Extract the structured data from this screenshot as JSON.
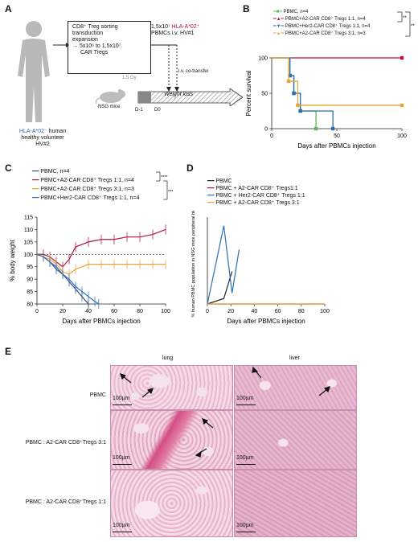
{
  "panelA": {
    "label": "A",
    "box_lines": [
      "CD8⁺ Treg sorting",
      "transduction",
      "expansion",
      "→ 5x10⁶ to 1,5x10⁷",
      "CAR Tregs"
    ],
    "donor_line1": "HLA-A*02⁻",
    "donor_line1_suffix": " human",
    "donor_line2": "healthy volunteer",
    "donor_line3": "HV#2",
    "pbmc_line1": "1,5x10⁷",
    "pbmc_line1_red": " HLA-A*02⁺",
    "pbmc_line2": "PBMCs i.v. HV#1",
    "gy": "1.5 Gy",
    "cotransfer": "i.v. co-transfer",
    "mice": "NSG mice",
    "d_minus1": "D-1",
    "d0": "D0",
    "timeline": "Weight loss"
  },
  "panelB": {
    "label": "B",
    "legend": [
      {
        "name": "PBMC, n=4",
        "color": "#5cb85c"
      },
      {
        "name": "PBMC+A2-CAR CD8⁺ Tregs 1:1, n=4",
        "color": "#b0163a"
      },
      {
        "name": "PBMC+Her2-CAR CD8⁺ Tregs 1:1, n=4",
        "color": "#2a6fb5"
      },
      {
        "name": "PBMC+A2-CAR CD8⁺ Tregs 3:1, n=3",
        "color": "#e8a33a"
      }
    ],
    "sig": [
      "**",
      "**"
    ]
  },
  "panelC": {
    "label": "C",
    "legend": [
      {
        "name": "PBMC, n=4",
        "color": "#3b4a8a"
      },
      {
        "name": "PBMC+A2-CAR CD8⁺ Tregs 1:1, n=4",
        "color": "#b0163a"
      },
      {
        "name": "PBMC+A2-CAR CD8⁺ Tregs 3:1, n=3",
        "color": "#e8a33a"
      },
      {
        "name": "PBMC+Her2-CAR CD8⁺ Tregs 1:1, n=4",
        "color": "#2a6fb5"
      }
    ],
    "sig": [
      "****",
      "***"
    ]
  },
  "panelD": {
    "label": "D",
    "legend": [
      {
        "name": "PBMC",
        "color": "#222222"
      },
      {
        "name": "PBMC + A2-CAR CD8⁺ Tregs1:1",
        "color": "#b0163a"
      },
      {
        "name": "PBMC + Her2-CAR CD8⁺ Tregs 1:1",
        "color": "#2a6fb5"
      },
      {
        "name": "PBMC + A2-CAR CD8⁺ Tregs 3:1",
        "color": "#e8a33a"
      }
    ]
  },
  "panelE": {
    "label": "E",
    "col_lung": "lung",
    "col_liver": "liver",
    "rows": [
      "PBMC",
      "PBMC : A2-CAR CD8⁺Tregs 3:1",
      "PBMC : A2-CAR CD8⁺Tregs 1:1"
    ],
    "scale": "100µm"
  },
  "chart_data": [
    {
      "type": "line",
      "panel": "B",
      "title": "",
      "xlabel": "Days after PBMCs injection",
      "ylabel": "Percent survival",
      "xlim": [
        0,
        100
      ],
      "ylim": [
        0,
        100
      ],
      "xticks": [
        0,
        50,
        100
      ],
      "yticks": [
        0,
        50,
        100
      ],
      "series": [
        {
          "name": "PBMC, n=4",
          "color": "#5cb85c",
          "x": [
            0,
            14,
            17,
            22,
            34
          ],
          "y": [
            100,
            75,
            50,
            25,
            0
          ]
        },
        {
          "name": "PBMC+A2-CAR CD8⁺ Tregs 1:1, n=4",
          "color": "#b0163a",
          "x": [
            0,
            100
          ],
          "y": [
            100,
            100
          ]
        },
        {
          "name": "PBMC+Her2-CAR CD8⁺ Tregs 1:1, n=4",
          "color": "#2a6fb5",
          "x": [
            0,
            14,
            17,
            22,
            47
          ],
          "y": [
            100,
            75,
            50,
            25,
            0
          ]
        },
        {
          "name": "PBMC+A2-CAR CD8⁺ Tregs 3:1, n=3",
          "color": "#e8a33a",
          "x": [
            0,
            13,
            20,
            100
          ],
          "y": [
            100,
            67,
            33,
            33
          ]
        }
      ]
    },
    {
      "type": "line",
      "panel": "C",
      "title": "",
      "xlabel": "Days after PBMCs injection",
      "ylabel": "% body weight",
      "xlim": [
        0,
        100
      ],
      "ylim": [
        80,
        115
      ],
      "xticks": [
        0,
        20,
        40,
        60,
        80,
        100
      ],
      "yticks": [
        80,
        85,
        90,
        95,
        100,
        105,
        110,
        115
      ],
      "series": [
        {
          "name": "PBMC, n=4",
          "color": "#3b4a8a",
          "x": [
            0,
            5,
            10,
            15,
            20,
            25,
            30,
            35,
            40
          ],
          "y": [
            100,
            99,
            97,
            94,
            92,
            89,
            86,
            83,
            80
          ]
        },
        {
          "name": "PBMC+A2-CAR CD8⁺ Tregs 1:1, n=4",
          "color": "#b0163a",
          "x": [
            0,
            5,
            10,
            15,
            20,
            25,
            30,
            40,
            50,
            60,
            70,
            80,
            90,
            100
          ],
          "y": [
            100,
            100,
            99,
            97,
            95,
            98,
            103,
            105,
            106,
            106,
            107,
            107,
            108,
            110
          ]
        },
        {
          "name": "PBMC+A2-CAR CD8⁺ Tregs 3:1, n=3",
          "color": "#e8a33a",
          "x": [
            0,
            5,
            10,
            15,
            20,
            25,
            30,
            40,
            50,
            60,
            70,
            80,
            90,
            100
          ],
          "y": [
            100,
            99,
            98,
            96,
            93,
            92,
            94,
            96,
            96,
            96,
            96,
            96,
            96,
            96
          ]
        },
        {
          "name": "PBMC+Her2-CAR CD8⁺ Tregs 1:1, n=4",
          "color": "#2a6fb5",
          "x": [
            0,
            5,
            10,
            15,
            20,
            25,
            30,
            35,
            40,
            45,
            48
          ],
          "y": [
            100,
            99,
            97,
            95,
            92,
            90,
            87,
            85,
            83,
            81,
            80
          ]
        }
      ]
    },
    {
      "type": "line",
      "panel": "D",
      "title": "",
      "xlabel": "Days after PBMCs injection",
      "ylabel": "% human PBMC population in NSG mice peripheral blood",
      "xlim": [
        0,
        100
      ],
      "ylim": [
        0,
        80
      ],
      "xticks": [
        0,
        20,
        40,
        60,
        80,
        100
      ],
      "series": [
        {
          "name": "PBMC",
          "color": "#222222",
          "x": [
            0,
            14,
            21
          ],
          "y": [
            0,
            5,
            30
          ]
        },
        {
          "name": "PBMC + A2-CAR CD8⁺ Tregs1:1",
          "color": "#b0163a",
          "x": [
            0,
            100
          ],
          "y": [
            0,
            0
          ]
        },
        {
          "name": "PBMC + Her2-CAR CD8⁺ Tregs 1:1",
          "color": "#2a6fb5",
          "x": [
            0,
            14,
            21,
            27
          ],
          "y": [
            0,
            72,
            10,
            50
          ]
        },
        {
          "name": "PBMC + A2-CAR CD8⁺ Tregs 3:1",
          "color": "#e8a33a",
          "x": [
            0,
            14,
            21,
            28,
            100
          ],
          "y": [
            0,
            0,
            0,
            0,
            0
          ]
        }
      ]
    }
  ]
}
